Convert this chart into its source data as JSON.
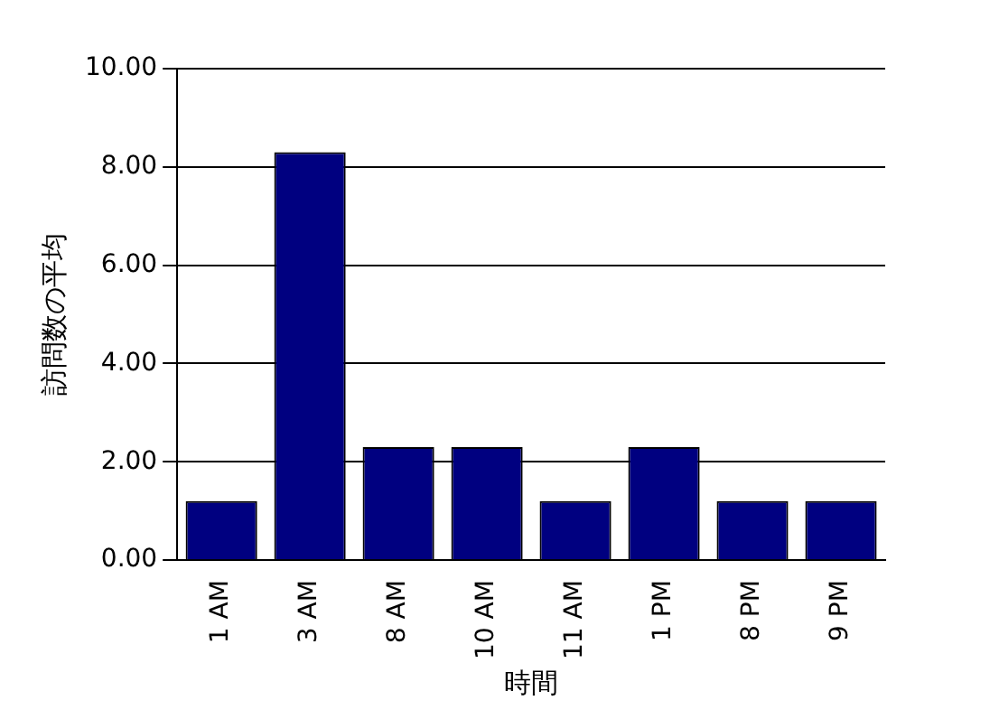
{
  "chart_data": {
    "type": "bar",
    "xlabel": "時間",
    "ylabel": "訪問数の平均",
    "categories": [
      "1 AM",
      "3 AM",
      "8 AM",
      "10 AM",
      "11 AM",
      "1 PM",
      "8 PM",
      "9 PM"
    ],
    "values": [
      1.2,
      8.3,
      2.3,
      2.3,
      1.2,
      2.3,
      1.2,
      1.2
    ],
    "color": "#000080",
    "ylim": [
      0,
      10
    ],
    "yticks": [
      {
        "value": 0,
        "label": "0.00"
      },
      {
        "value": 2,
        "label": "2.00"
      },
      {
        "value": 4,
        "label": "4.00"
      },
      {
        "value": 6,
        "label": "6.00"
      },
      {
        "value": 8,
        "label": "8.00"
      },
      {
        "value": 10,
        "label": "10.00"
      }
    ],
    "grid": "y",
    "legend": false
  }
}
